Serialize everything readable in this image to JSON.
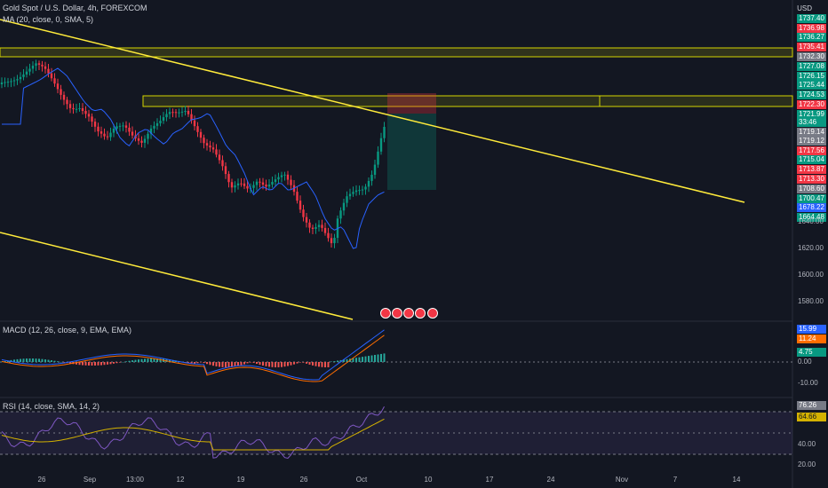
{
  "header": {
    "symbol_line": "Gold Spot / U.S. Dollar, 4h, FOREXCOM",
    "ma_line": "MA (20, close, 0, SMA, 5)",
    "macd_line": "MACD (12, 26, close, 9, EMA, EMA)",
    "rsi_line": "RSI (14, close, SMA, 14, 2)"
  },
  "price_axis": {
    "currency": "USD",
    "ticks": [
      "1640.00",
      "1620.00",
      "1600.00",
      "1580.00"
    ]
  },
  "price_badges": [
    {
      "text": "1737.40",
      "color": "#089981"
    },
    {
      "text": "1736.98",
      "color": "#f23645"
    },
    {
      "text": "1736.27",
      "color": "#089981"
    },
    {
      "text": "1735.41",
      "color": "#f23645"
    },
    {
      "text": "1732.30",
      "color": "#787b86"
    },
    {
      "text": "1727.08",
      "color": "#089981"
    },
    {
      "text": "1726.15",
      "color": "#089981"
    },
    {
      "text": "1725.44",
      "color": "#089981"
    },
    {
      "text": "1724.53",
      "color": "#089981"
    },
    {
      "text": "1722.30",
      "color": "#f23645"
    },
    {
      "text": "1721.99",
      "color": "#089981"
    },
    {
      "text": "33:46",
      "color": "#089981"
    },
    {
      "text": "1719.14",
      "color": "#787b86"
    },
    {
      "text": "1719.12",
      "color": "#787b86"
    },
    {
      "text": "1717.56",
      "color": "#f23645"
    },
    {
      "text": "1715.04",
      "color": "#089981"
    },
    {
      "text": "1713.87",
      "color": "#f23645"
    },
    {
      "text": "1713.30",
      "color": "#f23645"
    },
    {
      "text": "1708.60",
      "color": "#787b86"
    },
    {
      "text": "1700.47",
      "color": "#089981"
    },
    {
      "text": "1678.22",
      "color": "#2962ff"
    },
    {
      "text": "1664.48",
      "color": "#089981"
    }
  ],
  "macd": {
    "values": [
      {
        "text": "15.99",
        "color": "#2962ff"
      },
      {
        "text": "11.24",
        "color": "#ff6d00"
      },
      {
        "text": "4.75",
        "color": "#089981"
      }
    ],
    "ticks": [
      "0.00",
      "-10.00"
    ]
  },
  "rsi": {
    "values": [
      {
        "text": "76.26",
        "color": "#787b86"
      },
      {
        "text": "64.66",
        "color": "#d4b200"
      }
    ],
    "ticks": [
      "40.00",
      "20.00"
    ]
  },
  "time_axis": [
    "26",
    "Sep",
    "13:00",
    "12",
    "19",
    "26",
    "Oct",
    "10",
    "17",
    "24",
    "Nov",
    "7",
    "14"
  ],
  "colors": {
    "bg": "#131722",
    "up": "#089981",
    "down": "#f23645",
    "ma": "#2962ff",
    "trendline": "#ffeb3b",
    "rect": "#d4d400"
  }
}
